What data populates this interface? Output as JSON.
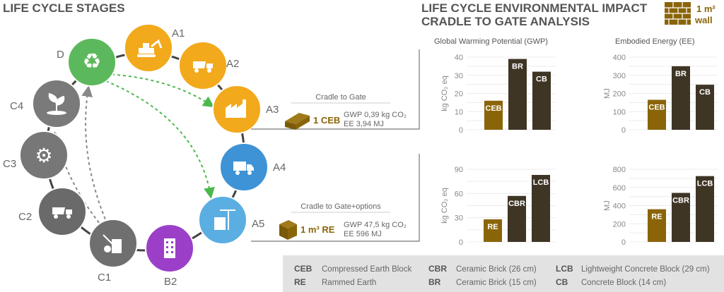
{
  "left_title": "LIFE CYCLE STAGES",
  "right_title_1": "LIFE CYCLE ENVIRONMENTAL IMPACT",
  "right_title_2": "CRADLE TO GATE ANALYSIS",
  "unit_badge": {
    "line1": "1 m²",
    "line2": "wall"
  },
  "stages": [
    {
      "id": "D",
      "label": "D",
      "color": "#5cb85c",
      "icon": "recycle-icon"
    },
    {
      "id": "A1",
      "label": "A1",
      "color": "#f2a91b",
      "icon": "excavator-icon"
    },
    {
      "id": "A2",
      "label": "A2",
      "color": "#f2a91b",
      "icon": "dump-truck-icon"
    },
    {
      "id": "A3",
      "label": "A3",
      "color": "#f2a91b",
      "icon": "factory-icon"
    },
    {
      "id": "A4",
      "label": "A4",
      "color": "#3d93d6",
      "icon": "truck-icon"
    },
    {
      "id": "A5",
      "label": "A5",
      "color": "#5aaee2",
      "icon": "building-crane-icon"
    },
    {
      "id": "B2",
      "label": "B2",
      "color": "#9b3fc8",
      "icon": "building-icon"
    },
    {
      "id": "C1",
      "label": "C1",
      "color": "#6f6f6f",
      "icon": "demolition-icon"
    },
    {
      "id": "C2",
      "label": "C2",
      "color": "#6a6a6a",
      "icon": "dump-truck-icon"
    },
    {
      "id": "C3",
      "label": "C3",
      "color": "#777777",
      "icon": "gears-icon"
    },
    {
      "id": "C4",
      "label": "C4",
      "color": "#7a7a7a",
      "icon": "plant-icon"
    }
  ],
  "box_top": {
    "caption": "Cradle to Gate",
    "unit": "1 CEB",
    "gwp": "GWP 0,39 kg CO₂",
    "ee": "EE 3,94 MJ"
  },
  "box_bottom": {
    "caption": "Cradle to Gate+options",
    "unit": "1 m³ RE",
    "gwp": "GWP 47,5 kg CO₂",
    "ee": "EE 596 MJ"
  },
  "colors": {
    "earth": "#8a6508",
    "dark": "#3f3525",
    "line": "#777777",
    "green_arrow": "#4cb84c",
    "grey_arrow": "#888888"
  },
  "chart_data": [
    {
      "type": "bar",
      "title": "Global Warming Potential (GWP)",
      "ylabel": "kg CO₂ eq",
      "ylim": [
        0,
        40
      ],
      "ticks": [
        0,
        10,
        20,
        30,
        40
      ],
      "categories": [
        "CEB",
        "BR",
        "CB"
      ],
      "values": [
        16,
        39,
        32
      ]
    },
    {
      "type": "bar",
      "title": "Embodied Energy (EE)",
      "ylabel": "MJ",
      "ylim": [
        0,
        400
      ],
      "ticks": [
        0,
        100,
        200,
        300,
        400
      ],
      "categories": [
        "CEB",
        "BR",
        "CB"
      ],
      "values": [
        165,
        350,
        248
      ]
    },
    {
      "type": "bar",
      "title": "",
      "ylabel": "kg CO₂ eq",
      "ylim": [
        0,
        90
      ],
      "ticks": [
        0,
        30,
        60,
        90
      ],
      "categories": [
        "RE",
        "CBR",
        "LCB"
      ],
      "values": [
        28,
        57,
        83
      ]
    },
    {
      "type": "bar",
      "title": "",
      "ylabel": "MJ",
      "ylim": [
        0,
        800
      ],
      "ticks": [
        0,
        200,
        400,
        600,
        800
      ],
      "categories": [
        "RE",
        "CBR",
        "LCB"
      ],
      "values": [
        360,
        540,
        725
      ]
    }
  ],
  "legend": [
    {
      "abbr": "CEB",
      "name": "Compressed Earth Block"
    },
    {
      "abbr": "RE",
      "name": "Rammed Earth"
    },
    {
      "abbr": "CBR",
      "name": "Ceramic Brick (26 cm)"
    },
    {
      "abbr": "BR",
      "name": "Ceramic Brick (15 cm)"
    },
    {
      "abbr": "LCB",
      "name": "Lightweight Concrete Block (29 cm)"
    },
    {
      "abbr": "CB",
      "name": "Concrete Block (14 cm)"
    }
  ]
}
